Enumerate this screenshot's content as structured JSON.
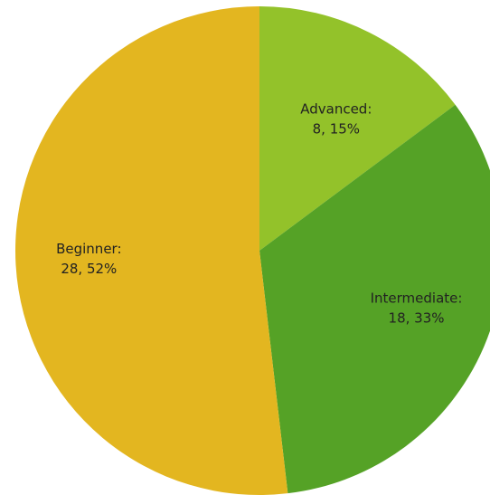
{
  "chart_data": {
    "type": "pie",
    "categories": [
      "Advanced:",
      "Intermediate:",
      "Beginner:"
    ],
    "values": [
      8,
      18,
      28
    ],
    "value_labels": [
      "8, 15%",
      "18, 33%",
      "28, 52%"
    ],
    "colors": [
      "#93c22a",
      "#55a226",
      "#e3b620"
    ]
  }
}
